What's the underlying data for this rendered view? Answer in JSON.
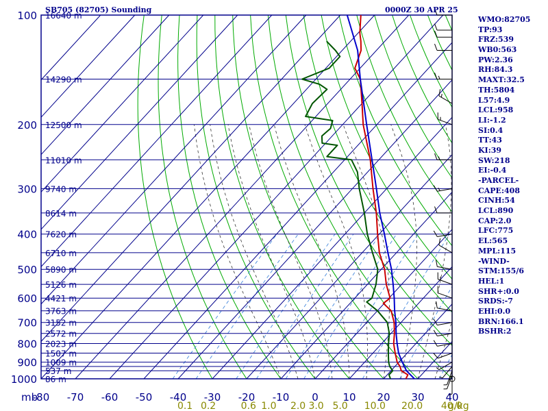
{
  "header": {
    "station": "SB705 (82705) Sounding",
    "time": "0000Z 30 APR 25"
  },
  "indices": [
    "WMO:82705",
    "TP:93",
    "FRZ:539",
    "WB0:563",
    "PW:2.36",
    "RH:84.3",
    "MAXT:32.5",
    "TH:5804",
    "L57:4.9",
    "LCL:958",
    "LI:-1.2",
    "SI:0.4",
    "TT:43",
    "KI:39",
    "SW:218",
    "EI:-0.4",
    "-PARCEL-",
    "CAPE:408",
    "CINH:54",
    "LCL:890",
    "CAP:2.0",
    "LFC:775",
    "EL:565",
    "MPL:115",
    "-WIND-",
    "STM:155/6",
    "HEL:1",
    "SHR+:0.0",
    "SRDS:-7",
    "EHI:0.0",
    "BRN:166.1",
    "BSHR:2"
  ],
  "colors": {
    "grid": "#00008b",
    "temperature": "#cc0000",
    "dewpoint": "#005500",
    "parcel": "#0000cc",
    "dry_adiabat": "#00aa00",
    "moist_adiabat": "#333333",
    "mixing_ratio": "#4488dd",
    "mixing_label": "#888800"
  },
  "chart_data": {
    "type": "line",
    "title": "SB705 (82705) Sounding",
    "axis_unit_label": "mb",
    "pressure_ticks": [
      100,
      200,
      300,
      400,
      500,
      600,
      700,
      800,
      900,
      1000
    ],
    "pressure_labels": [
      "100",
      "200",
      "300",
      "400",
      "500",
      "600",
      "700",
      "800",
      "900",
      "1000"
    ],
    "temperature_ticks": [
      -80,
      -70,
      -60,
      -50,
      -40,
      -30,
      -20,
      -10,
      0,
      10,
      20,
      30,
      40
    ],
    "temperature_labels": [
      "-80",
      "-70",
      "-60",
      "-50",
      "-40",
      "-30",
      "-20",
      "-10",
      "0",
      "10",
      "20",
      "30",
      "40"
    ],
    "xlim": [
      -80,
      40
    ],
    "ylim": [
      1000,
      100
    ],
    "y_scale": "log",
    "isobars": [
      100,
      150,
      200,
      250,
      300,
      350,
      400,
      450,
      500,
      550,
      600,
      650,
      700,
      750,
      800,
      850,
      900,
      925,
      950,
      1000
    ],
    "heights": [
      {
        "p": 1000,
        "label": "86 m"
      },
      {
        "p": 950,
        "label": "537 m"
      },
      {
        "p": 900,
        "label": "1009 m"
      },
      {
        "p": 850,
        "label": "1507 m"
      },
      {
        "p": 800,
        "label": "2023 m"
      },
      {
        "p": 750,
        "label": "2572 m"
      },
      {
        "p": 700,
        "label": "3152 m"
      },
      {
        "p": 650,
        "label": "3763 m"
      },
      {
        "p": 600,
        "label": "4421 m"
      },
      {
        "p": 550,
        "label": "5126 m"
      },
      {
        "p": 500,
        "label": "5890 m"
      },
      {
        "p": 450,
        "label": "6710 m"
      },
      {
        "p": 400,
        "label": "7620 m"
      },
      {
        "p": 350,
        "label": "8614 m"
      },
      {
        "p": 300,
        "label": "9740 m"
      },
      {
        "p": 250,
        "label": "11010 m"
      },
      {
        "p": 200,
        "label": "12500 m"
      },
      {
        "p": 150,
        "label": "14290 m"
      },
      {
        "p": 100,
        "label": "16640 m"
      }
    ],
    "mixing_ratio_labels": [
      {
        "w": 0.1,
        "label": "0.1"
      },
      {
        "w": 0.2,
        "label": "0.2"
      },
      {
        "w": 0.6,
        "label": "0.6"
      },
      {
        "w": 1.0,
        "label": "1.0"
      },
      {
        "w": 2.0,
        "label": "2.0"
      },
      {
        "w": 3.0,
        "label": "3.0"
      },
      {
        "w": 5.0,
        "label": "5.0"
      },
      {
        "w": 10.0,
        "label": "10.0"
      },
      {
        "w": 20.0,
        "label": "20.0"
      },
      {
        "w": 40.0,
        "label": "40.0"
      }
    ],
    "mixing_unit_label": "g/kg",
    "series": [
      {
        "key": "temperature",
        "points": [
          {
            "p": 1000,
            "t": 26.5
          },
          {
            "p": 975,
            "t": 26.0
          },
          {
            "p": 950,
            "t": 23.0
          },
          {
            "p": 925,
            "t": 21.5
          },
          {
            "p": 900,
            "t": 19.5
          },
          {
            "p": 850,
            "t": 16.5
          },
          {
            "p": 800,
            "t": 13.5
          },
          {
            "p": 750,
            "t": 11.0
          },
          {
            "p": 700,
            "t": 8.0
          },
          {
            "p": 650,
            "t": 4.0
          },
          {
            "p": 620,
            "t": -0.3
          },
          {
            "p": 600,
            "t": 0.3
          },
          {
            "p": 550,
            "t": -4.5
          },
          {
            "p": 500,
            "t": -9.0
          },
          {
            "p": 450,
            "t": -15.0
          },
          {
            "p": 400,
            "t": -20.5
          },
          {
            "p": 350,
            "t": -26.5
          },
          {
            "p": 300,
            "t": -34.0
          },
          {
            "p": 250,
            "t": -42.5
          },
          {
            "p": 200,
            "t": -54.0
          },
          {
            "p": 175,
            "t": -60.0
          },
          {
            "p": 150,
            "t": -67.0
          },
          {
            "p": 140,
            "t": -71.5
          },
          {
            "p": 125,
            "t": -74.5
          },
          {
            "p": 118,
            "t": -77.0
          },
          {
            "p": 112,
            "t": -79.5
          },
          {
            "p": 100,
            "t": -84.0
          }
        ]
      },
      {
        "key": "dewpoint",
        "points": [
          {
            "p": 1000,
            "t": 22.0
          },
          {
            "p": 975,
            "t": 20.5
          },
          {
            "p": 950,
            "t": 20.5
          },
          {
            "p": 925,
            "t": 18.5
          },
          {
            "p": 900,
            "t": 17.0
          },
          {
            "p": 850,
            "t": 14.5
          },
          {
            "p": 800,
            "t": 12.0
          },
          {
            "p": 750,
            "t": 9.5
          },
          {
            "p": 700,
            "t": 6.0
          },
          {
            "p": 650,
            "t": 0.0
          },
          {
            "p": 615,
            "t": -5.5
          },
          {
            "p": 600,
            "t": -5.0
          },
          {
            "p": 550,
            "t": -7.5
          },
          {
            "p": 500,
            "t": -11.0
          },
          {
            "p": 450,
            "t": -17.0
          },
          {
            "p": 400,
            "t": -23.5
          },
          {
            "p": 350,
            "t": -30.0
          },
          {
            "p": 300,
            "t": -38.0
          },
          {
            "p": 270,
            "t": -43.0
          },
          {
            "p": 250,
            "t": -48.0
          },
          {
            "p": 245,
            "t": -56.0
          },
          {
            "p": 228,
            "t": -56.0
          },
          {
            "p": 225,
            "t": -61.0
          },
          {
            "p": 215,
            "t": -63.0
          },
          {
            "p": 205,
            "t": -62.5
          },
          {
            "p": 195,
            "t": -64.0
          },
          {
            "p": 190,
            "t": -73.0
          },
          {
            "p": 175,
            "t": -74.5
          },
          {
            "p": 160,
            "t": -74.0
          },
          {
            "p": 155,
            "t": -77.5
          },
          {
            "p": 150,
            "t": -84.0
          },
          {
            "p": 140,
            "t": -79.0
          },
          {
            "p": 130,
            "t": -79.0
          },
          {
            "p": 125,
            "t": -82.0
          },
          {
            "p": 118,
            "t": -87.0
          }
        ]
      },
      {
        "key": "parcel",
        "points": [
          {
            "p": 1000,
            "t": 29.0
          },
          {
            "p": 950,
            "t": 24.5
          },
          {
            "p": 900,
            "t": 21.0
          },
          {
            "p": 850,
            "t": 17.5
          },
          {
            "p": 800,
            "t": 14.5
          },
          {
            "p": 750,
            "t": 11.5
          },
          {
            "p": 700,
            "t": 8.5
          },
          {
            "p": 650,
            "t": 5.0
          },
          {
            "p": 600,
            "t": 1.5
          },
          {
            "p": 550,
            "t": -2.5
          },
          {
            "p": 500,
            "t": -7.0
          },
          {
            "p": 450,
            "t": -12.5
          },
          {
            "p": 400,
            "t": -18.5
          },
          {
            "p": 350,
            "t": -25.5
          },
          {
            "p": 300,
            "t": -33.0
          },
          {
            "p": 250,
            "t": -42.0
          },
          {
            "p": 200,
            "t": -53.0
          },
          {
            "p": 175,
            "t": -59.5
          },
          {
            "p": 150,
            "t": -67.0
          },
          {
            "p": 125,
            "t": -75.5
          },
          {
            "p": 100,
            "t": -88.0
          }
        ]
      }
    ],
    "wind_barbs": [
      {
        "p": 1000,
        "dir": 180,
        "spd": 5
      },
      {
        "p": 975,
        "dir": 200,
        "spd": 5
      },
      {
        "p": 950,
        "dir": 200,
        "spd": 5
      },
      {
        "p": 925,
        "dir": 220,
        "spd": 5
      },
      {
        "p": 900,
        "dir": 240,
        "spd": 5
      },
      {
        "p": 850,
        "dir": 250,
        "spd": 10
      },
      {
        "p": 800,
        "dir": 260,
        "spd": 10
      },
      {
        "p": 750,
        "dir": 260,
        "spd": 10
      },
      {
        "p": 700,
        "dir": 260,
        "spd": 10
      },
      {
        "p": 650,
        "dir": 280,
        "spd": 10
      },
      {
        "p": 600,
        "dir": 290,
        "spd": 10
      },
      {
        "p": 550,
        "dir": 290,
        "spd": 15
      },
      {
        "p": 500,
        "dir": 280,
        "spd": 10
      },
      {
        "p": 450,
        "dir": 300,
        "spd": 10
      },
      {
        "p": 400,
        "dir": 260,
        "spd": 10
      },
      {
        "p": 350,
        "dir": 270,
        "spd": 10
      },
      {
        "p": 300,
        "dir": 260,
        "spd": 15
      },
      {
        "p": 250,
        "dir": 270,
        "spd": 15
      },
      {
        "p": 200,
        "dir": 290,
        "spd": 15
      },
      {
        "p": 175,
        "dir": 300,
        "spd": 15
      },
      {
        "p": 150,
        "dir": 270,
        "spd": 15
      },
      {
        "p": 125,
        "dir": 270,
        "spd": 10
      },
      {
        "p": 115,
        "dir": 270,
        "spd": 10
      },
      {
        "p": 110,
        "dir": 270,
        "spd": 10
      },
      {
        "p": 100,
        "dir": 270,
        "spd": 10
      }
    ]
  }
}
